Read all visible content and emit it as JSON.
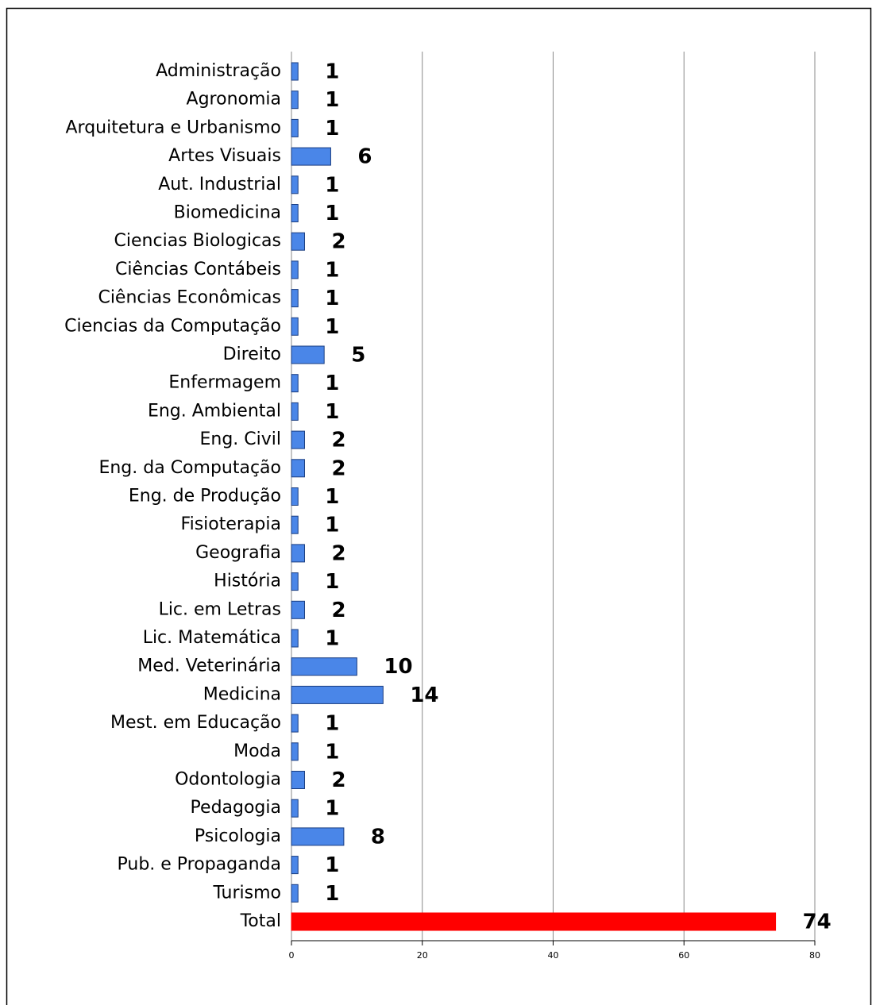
{
  "chart_data": {
    "type": "bar",
    "orientation": "horizontal",
    "categories": [
      "Administração",
      "Agronomia",
      "Arquitetura e Urbanismo",
      "Artes Visuais",
      "Aut. Industrial",
      "Biomedicina",
      "Ciencias Biologicas",
      "Ciências Contábeis",
      "Ciências Econômicas",
      "Ciencias da Computação",
      "Direito",
      "Enfermagem",
      "Eng. Ambiental",
      "Eng. Civil",
      "Eng. da Computação",
      "Eng. de Produção",
      "Fisioterapia",
      "Geografia",
      "História",
      "Lic. em Letras",
      "Lic. Matemática",
      "Med. Veterinária",
      "Medicina",
      "Mest. em Educação",
      "Moda",
      "Odontologia",
      "Pedagogia",
      "Psicologia",
      "Pub. e Propaganda",
      "Turismo",
      "Total"
    ],
    "values": [
      1,
      1,
      1,
      6,
      1,
      1,
      2,
      1,
      1,
      1,
      5,
      1,
      1,
      2,
      2,
      1,
      1,
      2,
      1,
      2,
      1,
      10,
      14,
      1,
      1,
      2,
      1,
      8,
      1,
      1,
      74
    ],
    "colors": [
      "#4a86e8",
      "#4a86e8",
      "#4a86e8",
      "#4a86e8",
      "#4a86e8",
      "#4a86e8",
      "#4a86e8",
      "#4a86e8",
      "#4a86e8",
      "#4a86e8",
      "#4a86e8",
      "#4a86e8",
      "#4a86e8",
      "#4a86e8",
      "#4a86e8",
      "#4a86e8",
      "#4a86e8",
      "#4a86e8",
      "#4a86e8",
      "#4a86e8",
      "#4a86e8",
      "#4a86e8",
      "#4a86e8",
      "#4a86e8",
      "#4a86e8",
      "#4a86e8",
      "#4a86e8",
      "#4a86e8",
      "#4a86e8",
      "#4a86e8",
      "#ff0000"
    ],
    "xlim": [
      0,
      80
    ],
    "xticks": [
      0,
      20,
      40,
      60,
      80
    ],
    "grid": true
  }
}
